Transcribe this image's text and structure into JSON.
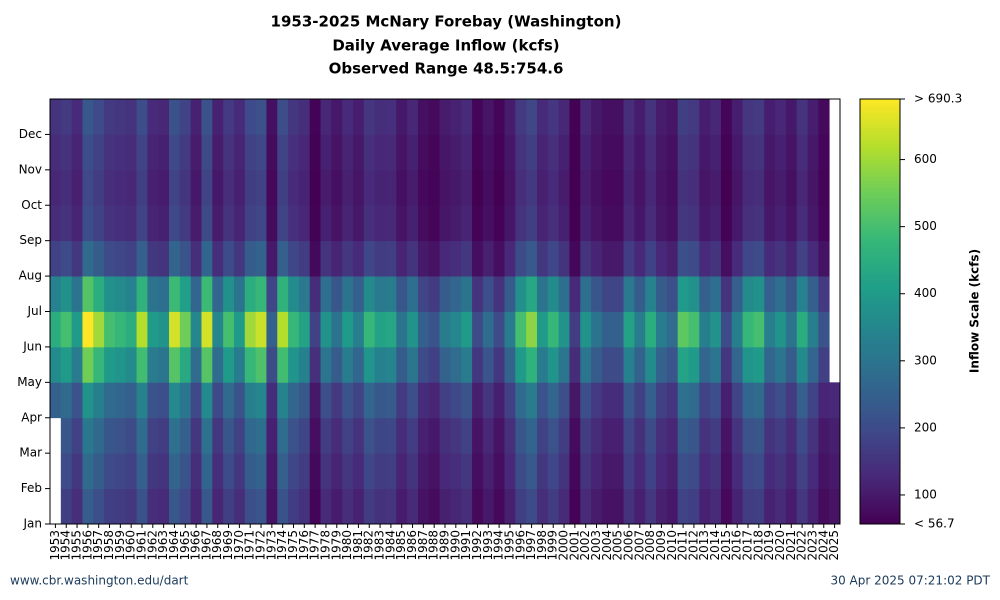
{
  "chart_data": {
    "type": "heatmap",
    "title_lines": [
      "1953-2025 McNary Forebay (Washington)",
      "Daily Average Inflow (kcfs)",
      "Observed Range 48.5:754.6"
    ],
    "categories": [
      1953,
      1954,
      1955,
      1956,
      1957,
      1958,
      1959,
      1960,
      1961,
      1962,
      1963,
      1964,
      1965,
      1966,
      1967,
      1968,
      1969,
      1970,
      1971,
      1972,
      1973,
      1974,
      1975,
      1976,
      1977,
      1978,
      1979,
      1980,
      1981,
      1982,
      1983,
      1984,
      1985,
      1986,
      1987,
      1988,
      1989,
      1990,
      1991,
      1992,
      1993,
      1994,
      1995,
      1996,
      1997,
      1998,
      1999,
      2000,
      2001,
      2002,
      2003,
      2004,
      2005,
      2006,
      2007,
      2008,
      2009,
      2010,
      2011,
      2012,
      2013,
      2014,
      2015,
      2016,
      2017,
      2018,
      2019,
      2020,
      2021,
      2022,
      2023,
      2024,
      2025
    ],
    "y_categories": [
      "Jan",
      "Feb",
      "Mar",
      "Apr",
      "May",
      "Jun",
      "Jul",
      "Aug",
      "Sep",
      "Oct",
      "Nov",
      "Dec"
    ],
    "z": [
      [
        null,
        null,
        null,
        248,
        360,
        450,
        338,
        180,
        135,
        126,
        135,
        149
      ],
      [
        175,
        200,
        225,
        275,
        400,
        500,
        375,
        200,
        150,
        140,
        150,
        165
      ],
      [
        140,
        160,
        180,
        220,
        320,
        400,
        300,
        160,
        120,
        112,
        120,
        132
      ],
      [
        242,
        276,
        311,
        380,
        552,
        690,
        518,
        276,
        207,
        193,
        207,
        228
      ],
      [
        210,
        240,
        270,
        330,
        480,
        600,
        450,
        240,
        180,
        168,
        180,
        198
      ],
      [
        175,
        200,
        225,
        275,
        400,
        500,
        375,
        200,
        150,
        140,
        150,
        165
      ],
      [
        168,
        192,
        216,
        264,
        384,
        480,
        360,
        192,
        144,
        134,
        144,
        158
      ],
      [
        158,
        180,
        203,
        248,
        360,
        450,
        338,
        180,
        135,
        126,
        135,
        149
      ],
      [
        217,
        248,
        279,
        341,
        496,
        620,
        465,
        248,
        186,
        174,
        186,
        205
      ],
      [
        140,
        160,
        180,
        220,
        320,
        400,
        300,
        160,
        120,
        112,
        120,
        132
      ],
      [
        133,
        152,
        171,
        209,
        304,
        380,
        285,
        152,
        114,
        106,
        114,
        125
      ],
      [
        228,
        260,
        293,
        358,
        520,
        650,
        488,
        260,
        195,
        182,
        195,
        215
      ],
      [
        193,
        220,
        248,
        303,
        440,
        550,
        413,
        220,
        165,
        154,
        165,
        182
      ],
      [
        123,
        140,
        158,
        193,
        280,
        350,
        263,
        140,
        105,
        98,
        105,
        116
      ],
      [
        228,
        260,
        293,
        358,
        520,
        650,
        488,
        260,
        195,
        182,
        195,
        215
      ],
      [
        123,
        140,
        158,
        193,
        280,
        350,
        263,
        140,
        105,
        98,
        105,
        116
      ],
      [
        175,
        200,
        225,
        275,
        400,
        500,
        375,
        200,
        150,
        140,
        150,
        165
      ],
      [
        140,
        160,
        180,
        220,
        320,
        400,
        300,
        160,
        120,
        112,
        120,
        132
      ],
      [
        210,
        240,
        270,
        330,
        480,
        600,
        450,
        240,
        180,
        168,
        180,
        198
      ],
      [
        224,
        256,
        288,
        352,
        512,
        640,
        480,
        256,
        192,
        179,
        192,
        211
      ],
      [
        88,
        100,
        113,
        138,
        200,
        250,
        188,
        100,
        75,
        70,
        75,
        83
      ],
      [
        217,
        248,
        279,
        341,
        496,
        620,
        465,
        248,
        186,
        174,
        186,
        205
      ],
      [
        168,
        192,
        216,
        264,
        384,
        480,
        360,
        192,
        144,
        134,
        144,
        158
      ],
      [
        147,
        168,
        189,
        231,
        336,
        420,
        315,
        168,
        126,
        118,
        126,
        139
      ],
      [
        63,
        72,
        81,
        99,
        144,
        180,
        135,
        72,
        58,
        55,
        58,
        60
      ],
      [
        133,
        152,
        171,
        209,
        304,
        380,
        285,
        152,
        114,
        106,
        114,
        125
      ],
      [
        105,
        120,
        135,
        165,
        240,
        300,
        225,
        120,
        90,
        84,
        90,
        99
      ],
      [
        140,
        160,
        180,
        220,
        320,
        400,
        300,
        160,
        120,
        112,
        120,
        132
      ],
      [
        116,
        132,
        149,
        182,
        264,
        330,
        248,
        132,
        99,
        92,
        99,
        109
      ],
      [
        168,
        192,
        216,
        264,
        384,
        480,
        360,
        192,
        144,
        134,
        144,
        158
      ],
      [
        147,
        168,
        189,
        231,
        336,
        420,
        315,
        168,
        126,
        118,
        126,
        139
      ],
      [
        151,
        172,
        194,
        237,
        344,
        430,
        323,
        172,
        129,
        120,
        129,
        142
      ],
      [
        105,
        120,
        135,
        165,
        240,
        300,
        225,
        120,
        90,
        84,
        90,
        99
      ],
      [
        133,
        152,
        171,
        209,
        304,
        380,
        285,
        152,
        114,
        106,
        114,
        125
      ],
      [
        88,
        100,
        113,
        138,
        200,
        250,
        188,
        100,
        75,
        70,
        75,
        83
      ],
      [
        77,
        88,
        99,
        121,
        176,
        220,
        165,
        88,
        66,
        62,
        66,
        73
      ],
      [
        112,
        128,
        144,
        176,
        256,
        320,
        240,
        128,
        96,
        90,
        96,
        106
      ],
      [
        123,
        140,
        158,
        193,
        280,
        350,
        263,
        140,
        105,
        98,
        105,
        116
      ],
      [
        140,
        160,
        180,
        220,
        320,
        400,
        300,
        160,
        120,
        112,
        120,
        132
      ],
      [
        70,
        80,
        90,
        110,
        160,
        200,
        150,
        80,
        60,
        56,
        60,
        66
      ],
      [
        98,
        112,
        126,
        154,
        224,
        280,
        210,
        112,
        84,
        78,
        84,
        92
      ],
      [
        70,
        80,
        90,
        110,
        160,
        200,
        150,
        80,
        60,
        56,
        60,
        66
      ],
      [
        112,
        128,
        144,
        176,
        256,
        320,
        240,
        128,
        96,
        90,
        96,
        106
      ],
      [
        175,
        200,
        225,
        275,
        400,
        500,
        375,
        200,
        150,
        140,
        150,
        165
      ],
      [
        203,
        232,
        261,
        319,
        464,
        580,
        435,
        232,
        174,
        162,
        174,
        191
      ],
      [
        140,
        160,
        180,
        220,
        320,
        400,
        300,
        160,
        120,
        112,
        120,
        132
      ],
      [
        168,
        192,
        216,
        264,
        384,
        480,
        360,
        192,
        144,
        134,
        144,
        158
      ],
      [
        133,
        152,
        171,
        209,
        304,
        380,
        285,
        152,
        114,
        106,
        114,
        125
      ],
      [
        60,
        68,
        77,
        94,
        136,
        170,
        128,
        68,
        55,
        52,
        55,
        58
      ],
      [
        133,
        152,
        171,
        209,
        304,
        380,
        285,
        152,
        114,
        106,
        114,
        125
      ],
      [
        105,
        120,
        135,
        165,
        240,
        300,
        225,
        120,
        90,
        84,
        90,
        99
      ],
      [
        88,
        100,
        113,
        138,
        200,
        250,
        188,
        100,
        75,
        70,
        75,
        83
      ],
      [
        88,
        100,
        113,
        138,
        200,
        250,
        188,
        100,
        75,
        70,
        75,
        83
      ],
      [
        147,
        168,
        189,
        231,
        336,
        420,
        315,
        168,
        126,
        118,
        126,
        139
      ],
      [
        112,
        128,
        144,
        176,
        256,
        320,
        240,
        128,
        96,
        90,
        96,
        106
      ],
      [
        158,
        180,
        203,
        248,
        360,
        450,
        338,
        180,
        135,
        126,
        135,
        149
      ],
      [
        112,
        128,
        144,
        176,
        256,
        320,
        240,
        128,
        96,
        90,
        96,
        106
      ],
      [
        98,
        112,
        126,
        154,
        224,
        280,
        210,
        112,
        84,
        78,
        84,
        92
      ],
      [
        186,
        212,
        239,
        292,
        424,
        530,
        398,
        212,
        159,
        148,
        159,
        175
      ],
      [
        175,
        200,
        225,
        275,
        400,
        500,
        375,
        200,
        150,
        140,
        150,
        165
      ],
      [
        116,
        132,
        149,
        182,
        264,
        330,
        248,
        132,
        99,
        92,
        99,
        109
      ],
      [
        133,
        152,
        171,
        209,
        304,
        380,
        285,
        152,
        114,
        106,
        114,
        125
      ],
      [
        70,
        80,
        90,
        110,
        160,
        200,
        150,
        80,
        60,
        56,
        60,
        66
      ],
      [
        116,
        132,
        149,
        182,
        264,
        330,
        248,
        132,
        99,
        92,
        99,
        109
      ],
      [
        168,
        192,
        216,
        264,
        384,
        480,
        360,
        192,
        144,
        134,
        144,
        158
      ],
      [
        175,
        200,
        225,
        275,
        400,
        500,
        375,
        200,
        150,
        140,
        150,
        165
      ],
      [
        116,
        132,
        149,
        182,
        264,
        330,
        248,
        132,
        99,
        92,
        99,
        109
      ],
      [
        133,
        152,
        171,
        209,
        304,
        380,
        285,
        152,
        114,
        106,
        114,
        125
      ],
      [
        105,
        120,
        135,
        165,
        240,
        300,
        225,
        120,
        90,
        84,
        90,
        99
      ],
      [
        158,
        180,
        203,
        248,
        360,
        450,
        338,
        180,
        135,
        126,
        135,
        149
      ],
      [
        116,
        132,
        149,
        182,
        264,
        330,
        248,
        132,
        99,
        92,
        99,
        109
      ],
      [
        77,
        88,
        99,
        121,
        176,
        220,
        165,
        88,
        66,
        62,
        66,
        73
      ],
      [
        90,
        100,
        110,
        130,
        null,
        null,
        null,
        null,
        null,
        null,
        null,
        null
      ]
    ],
    "colormap": "viridis",
    "zlim": [
      56.7,
      690.3
    ],
    "zticks": [
      {
        "value": 56.7,
        "label": "< 56.7"
      },
      100,
      200,
      300,
      400,
      500,
      600,
      {
        "value": 690.3,
        "label": "> 690.3"
      }
    ],
    "colorbar_label": "Inflow Scale (kcfs)",
    "source": "www.cbr.washington.edu/dart",
    "timestamp": "30 Apr 2025 07:21:02 PDT"
  }
}
